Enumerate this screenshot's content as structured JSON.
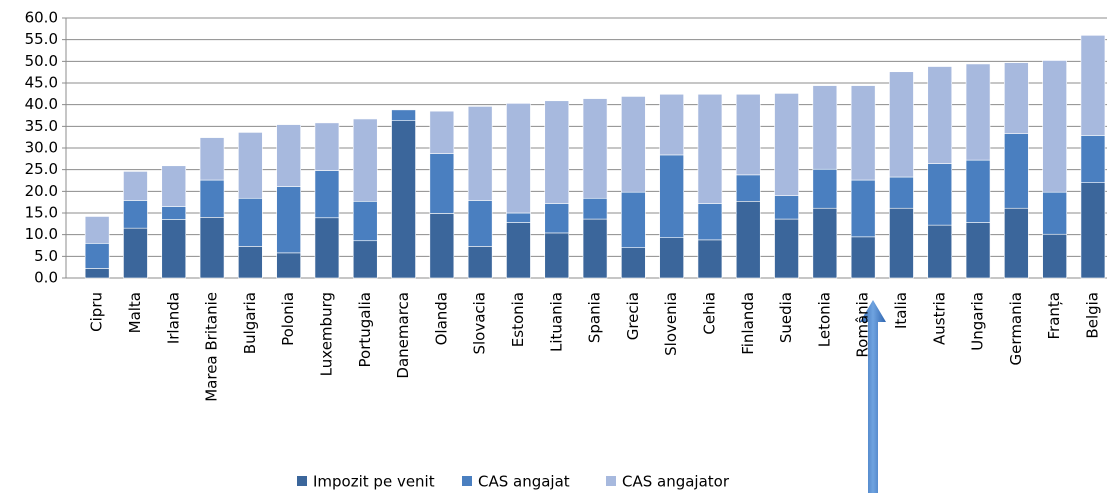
{
  "chart_data": {
    "type": "stacked-bar",
    "categories": [
      "Cipru",
      "Malta",
      "Irlanda",
      "Marea Britanie",
      "Bulgaria",
      "Polonia",
      "Luxemburg",
      "Portugalia",
      "Danemarca",
      "Olanda",
      "Slovacia",
      "Estonia",
      "Lituania",
      "Spania",
      "Grecia",
      "Slovenia",
      "Cehia",
      "Finlanda",
      "Suedia",
      "Letonia",
      "România",
      "Italia",
      "Austria",
      "Ungaria",
      "Germania",
      "Franța",
      "Belgia"
    ],
    "series": [
      {
        "name": "Impozit pe venit",
        "color": "#3b669b",
        "values": [
          2.2,
          11.5,
          13.5,
          14.0,
          7.3,
          5.8,
          13.9,
          8.6,
          36.3,
          14.9,
          7.3,
          12.8,
          10.4,
          13.6,
          7.0,
          9.3,
          8.8,
          17.7,
          13.6,
          16.1,
          9.5,
          16.1,
          12.2,
          12.8,
          16.1,
          10.1,
          22.0
        ]
      },
      {
        "name": "CAS angajat",
        "color": "#4a7fc0",
        "values": [
          5.8,
          6.4,
          3.0,
          8.6,
          11.1,
          15.3,
          10.9,
          9.1,
          2.5,
          13.8,
          10.6,
          2.2,
          6.8,
          4.8,
          12.8,
          19.1,
          8.4,
          6.1,
          5.4,
          9.0,
          13.1,
          7.2,
          14.2,
          14.4,
          17.2,
          9.7,
          10.9
        ]
      },
      {
        "name": "CAS angajator",
        "color": "#a7b9de",
        "values": [
          6.2,
          6.7,
          9.4,
          9.8,
          15.2,
          14.3,
          11.0,
          19.0,
          0,
          9.8,
          21.7,
          25.3,
          23.7,
          23.0,
          22.1,
          14.0,
          25.2,
          18.6,
          23.6,
          19.3,
          21.8,
          24.3,
          22.4,
          22.2,
          16.4,
          30.4,
          23.1
        ]
      }
    ],
    "ylim": [
      0,
      60
    ],
    "yticks": [
      {
        "value": 0,
        "label": "0.0"
      },
      {
        "value": 5,
        "label": "5.0"
      },
      {
        "value": 10,
        "label": "10.0"
      },
      {
        "value": 15,
        "label": "15.0"
      },
      {
        "value": 20,
        "label": "20.0"
      },
      {
        "value": 25,
        "label": "25.0"
      },
      {
        "value": 30,
        "label": "30.0"
      },
      {
        "value": 35,
        "label": "35.0"
      },
      {
        "value": 40,
        "label": "40.0"
      },
      {
        "value": 45,
        "label": "45.0"
      },
      {
        "value": 50,
        "label": "50.0"
      },
      {
        "value": 55,
        "label": "55.0"
      },
      {
        "value": 60,
        "label": "60.0"
      }
    ],
    "grid": true
  }
}
